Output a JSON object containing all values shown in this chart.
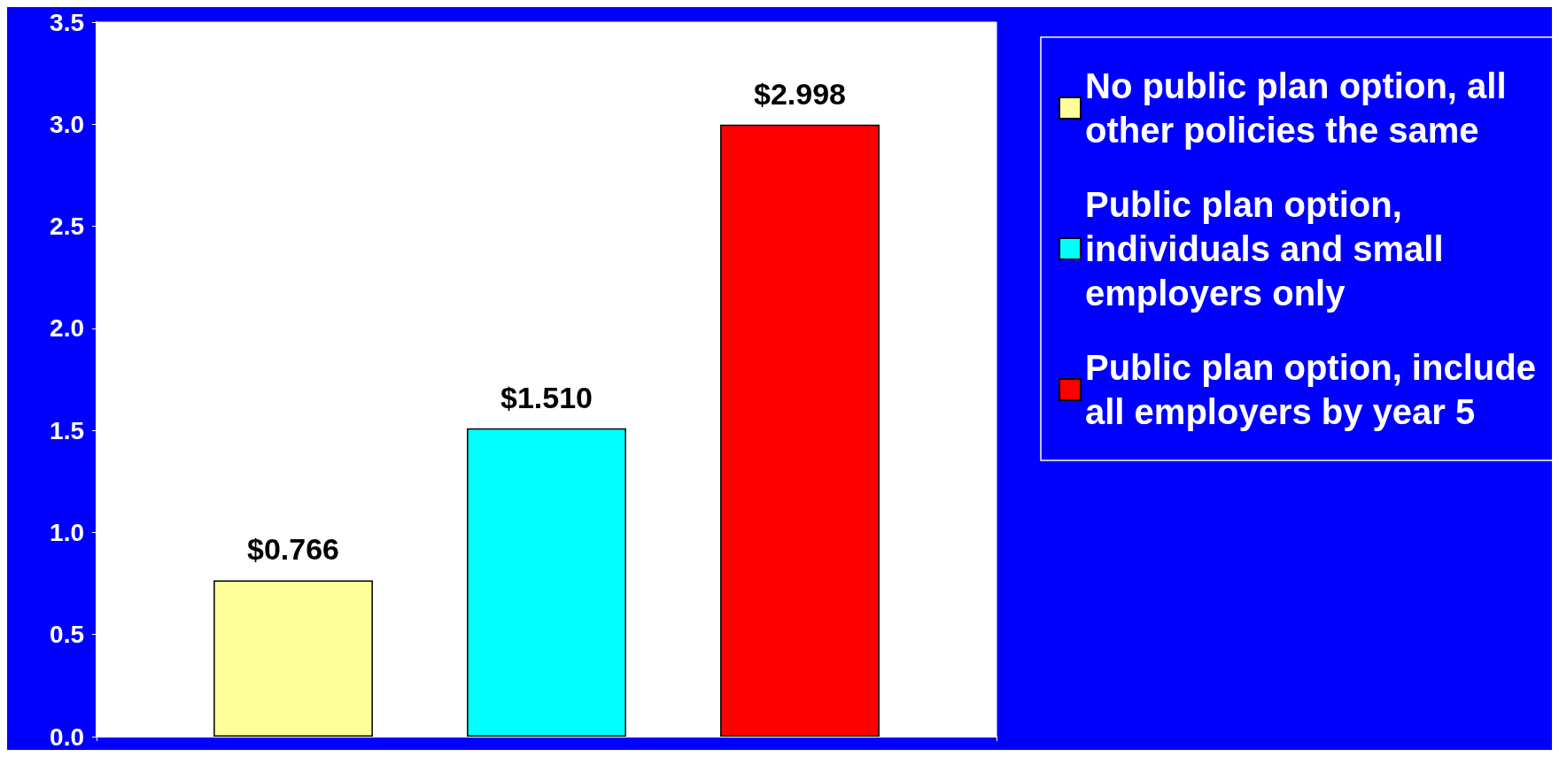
{
  "chart_data": {
    "type": "bar",
    "categories": [
      null
    ],
    "series": [
      {
        "name": "No public plan option, all other policies the same",
        "color": "#ffff99",
        "values": [
          0.766
        ],
        "value_labels": [
          "$0.766"
        ]
      },
      {
        "name": "Public plan option, individuals and small employers only",
        "color": "#00ffff",
        "values": [
          1.51
        ],
        "value_labels": [
          "$1.510"
        ]
      },
      {
        "name": "Public plan option, include all employers by year 5",
        "color": "#ff0000",
        "values": [
          2.998
        ],
        "value_labels": [
          "$2.998"
        ]
      }
    ],
    "ylim": [
      0,
      3.5
    ],
    "yticks": [
      {
        "value": 0,
        "label": "0.0"
      },
      {
        "value": 0.5,
        "label": "0.5"
      },
      {
        "value": 1,
        "label": "1.0"
      },
      {
        "value": 1.5,
        "label": "1.5"
      },
      {
        "value": 2,
        "label": "2.0"
      },
      {
        "value": 2.5,
        "label": "2.5"
      },
      {
        "value": 3,
        "label": "3.0"
      },
      {
        "value": 3.5,
        "label": "3.5"
      }
    ],
    "grid": false,
    "legend": "right"
  }
}
